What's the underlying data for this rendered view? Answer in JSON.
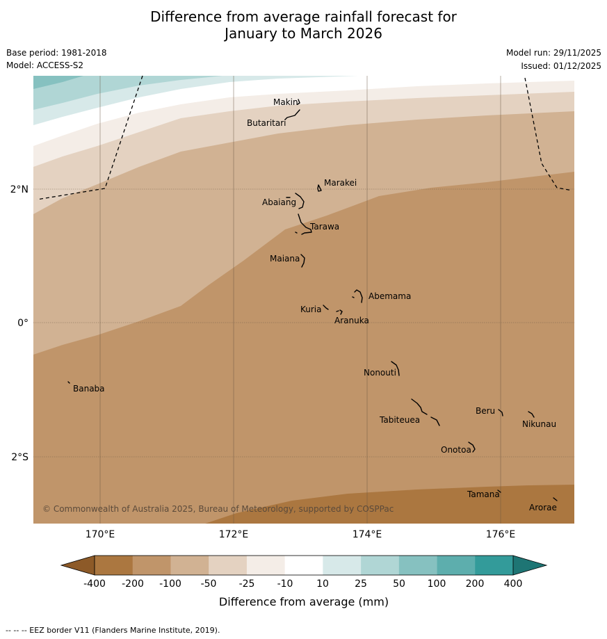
{
  "title": {
    "line1": "Difference from average rainfall forecast for",
    "line2": "January to March 2026"
  },
  "meta_left": {
    "base_period": "Base period: 1981-2018",
    "model": "Model: ACCESS-S2"
  },
  "meta_right": {
    "model_run": "Model run: 29/11/2025",
    "issued": "Issued: 01/12/2025"
  },
  "map": {
    "lon_labels": [
      "170°E",
      "172°E",
      "174°E",
      "176°E"
    ],
    "lat_labels": [
      "2°N",
      "0°",
      "2°S"
    ],
    "places": [
      "Makin",
      "Butaritari",
      "Marakei",
      "Abaiang",
      "Tarawa",
      "Maiana",
      "Abemama",
      "Kuria",
      "Aranuka",
      "Banaba",
      "Nonouti",
      "Beru",
      "Nikunau",
      "Tabiteuea",
      "Onotoa",
      "Tamana",
      "Arorae"
    ],
    "copyright": "© Commonwealth of Australia 2025, Bureau of Meteorology, supported by COSPPac"
  },
  "colorbar": {
    "colors": [
      "#ab7740",
      "#c0956a",
      "#d1b293",
      "#e4d2c1",
      "#f4ede7",
      "#ffffff",
      "#d7e9e9",
      "#b0d6d5",
      "#86c1c0",
      "#5daead",
      "#339b9a"
    ],
    "low_color": "#8d5a28",
    "high_color": "#1e7574",
    "tick_labels": [
      "-400",
      "-200",
      "-100",
      "-50",
      "-25",
      "-10",
      "10",
      "25",
      "50",
      "100",
      "200",
      "400"
    ],
    "label": "Difference from average (mm)"
  },
  "footnote": "--  --  -- EEZ border V11 (Flanders Marine Institute, 2019)."
}
